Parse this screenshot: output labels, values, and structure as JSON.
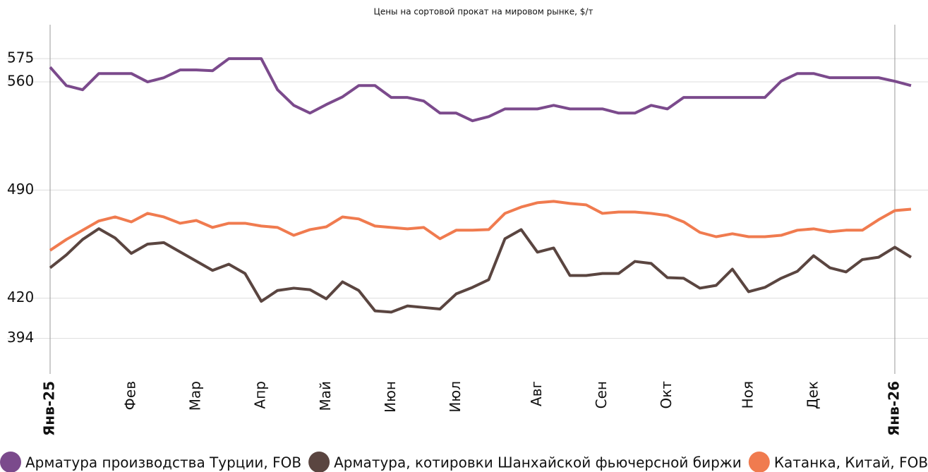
{
  "chart_data": {
    "type": "line",
    "title": "Цены на сортовой прокат на мировом рынке, $/т",
    "categories": [
      "Янв-25",
      null,
      null,
      null,
      null,
      "Фев",
      null,
      null,
      null,
      "Мар",
      null,
      null,
      null,
      "Апр",
      null,
      null,
      null,
      "Май",
      null,
      null,
      null,
      "Июн",
      null,
      null,
      null,
      "Июл",
      null,
      null,
      null,
      null,
      "Авг",
      null,
      null,
      null,
      "Сен",
      null,
      null,
      null,
      "Окт",
      null,
      null,
      null,
      null,
      "Ноя",
      null,
      null,
      null,
      "Дек",
      null,
      null,
      null,
      null,
      "Янв-26",
      null
    ],
    "series": [
      {
        "name": "Арматура производства Турции, FOB",
        "color": "#7b4a8c",
        "values": [
          569.5,
          557.6,
          554.9,
          565.4,
          565.4,
          565.4,
          560,
          562.7,
          567.7,
          567.7,
          567.2,
          575,
          575,
          575,
          554.9,
          544.8,
          539.8,
          545.3,
          550.3,
          557.6,
          557.6,
          549.9,
          549.9,
          547.6,
          539.8,
          539.8,
          534.8,
          537.5,
          542.5,
          542.5,
          542.5,
          544.8,
          542.5,
          542.5,
          542.5,
          539.8,
          539.8,
          544.8,
          542.5,
          549.9,
          549.9,
          549.9,
          549.9,
          549.9,
          549.9,
          560.4,
          565.4,
          565.4,
          562.7,
          562.7,
          562.7,
          562.7,
          560.4,
          557.6
        ]
      },
      {
        "name": "Арматура, котировки Шанхайской фьючерсной биржи",
        "color": "#5a4540",
        "values": [
          439.7,
          448,
          458,
          465,
          459,
          449,
          455,
          456,
          450,
          444,
          438,
          442,
          436,
          418,
          425,
          426.5,
          425.5,
          419.6,
          430.6,
          425,
          411.8,
          411,
          415,
          414,
          413,
          422.8,
          427,
          432,
          458.5,
          464.4,
          449.8,
          452.5,
          434.7,
          434.7,
          436,
          436,
          443.8,
          442.5,
          433.3,
          432.9,
          426.5,
          428.3,
          438.8,
          424.2,
          427,
          432.9,
          437.4,
          447.5,
          439.7,
          437,
          445,
          446.5,
          453,
          446.5
        ]
      },
      {
        "name": "Катанка, Китай, FOB",
        "color": "#f07b4f",
        "values": [
          451,
          458,
          464,
          470,
          472.6,
          469.4,
          474.9,
          472.6,
          468.5,
          470.3,
          465.8,
          468.5,
          468.5,
          466.7,
          465.8,
          460.7,
          464.4,
          466.2,
          472.6,
          471.3,
          466.7,
          465.8,
          464.9,
          465.8,
          458.5,
          464,
          464,
          464.4,
          474.9,
          479,
          481.8,
          482.7,
          481.3,
          480.4,
          474.9,
          475.8,
          475.8,
          474.9,
          473.5,
          469.4,
          462.6,
          459.8,
          461.7,
          459.8,
          459.8,
          460.7,
          464,
          464.9,
          463,
          464,
          464,
          470.8,
          476.7,
          477.6
        ]
      }
    ],
    "ylim": [
      371,
      597
    ],
    "yticks": [
      394,
      420,
      490,
      560,
      575
    ],
    "grid": true
  }
}
